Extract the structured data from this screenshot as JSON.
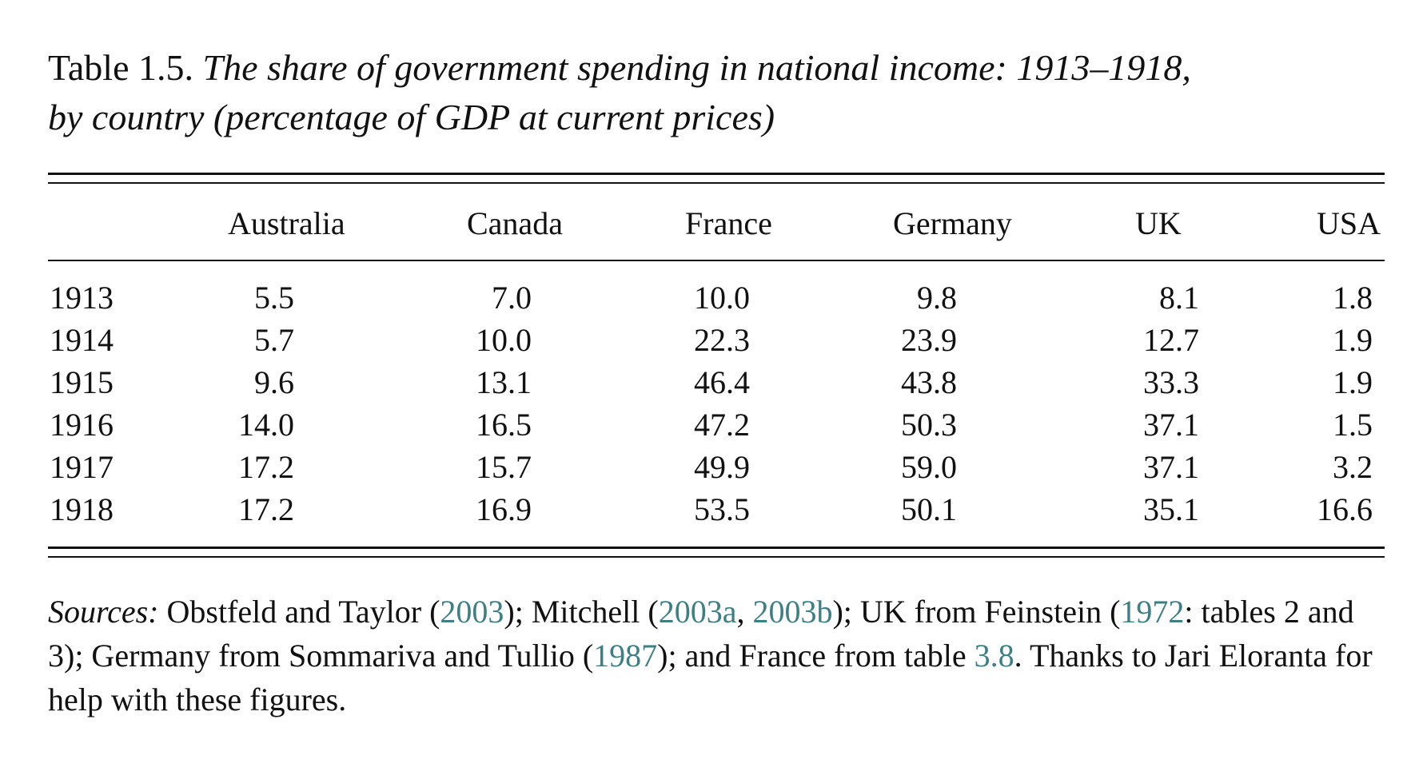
{
  "caption": {
    "label": "Table 1.5.",
    "title_line1": "The share of government spending in national income: 1913–1918,",
    "title_line2": "by country (percentage of GDP at current prices)"
  },
  "table": {
    "columns": [
      "Australia",
      "Canada",
      "France",
      "Germany",
      "UK",
      "USA"
    ],
    "rows": [
      {
        "year": "1913",
        "values": [
          "5.5",
          "7.0",
          "10.0",
          "9.8",
          "8.1",
          "1.8"
        ]
      },
      {
        "year": "1914",
        "values": [
          "5.7",
          "10.0",
          "22.3",
          "23.9",
          "12.7",
          "1.9"
        ]
      },
      {
        "year": "1915",
        "values": [
          "9.6",
          "13.1",
          "46.4",
          "43.8",
          "33.3",
          "1.9"
        ]
      },
      {
        "year": "1916",
        "values": [
          "14.0",
          "16.5",
          "47.2",
          "50.3",
          "37.1",
          "1.5"
        ]
      },
      {
        "year": "1917",
        "values": [
          "17.2",
          "15.7",
          "49.9",
          "59.0",
          "37.1",
          "3.2"
        ]
      },
      {
        "year": "1918",
        "values": [
          "17.2",
          "16.9",
          "53.5",
          "50.1",
          "35.1",
          "16.6"
        ]
      }
    ]
  },
  "sources": {
    "label": "Sources:",
    "t1": " Obstfeld and Taylor (",
    "r1": "2003",
    "t2": "); Mitchell (",
    "r2": "2003a",
    "t3": ", ",
    "r3": "2003b",
    "t4": "); UK from Feinstein (",
    "r4": "1972",
    "t5": ": tables 2 and 3); Germany from Sommariva and Tullio (",
    "r5": "1987",
    "t6": "); and France from table ",
    "r6": "3.8",
    "t7": ". Thanks to Jari Eloranta for help with these figures."
  },
  "colors": {
    "text": "#111111",
    "link": "#3d7f83"
  }
}
